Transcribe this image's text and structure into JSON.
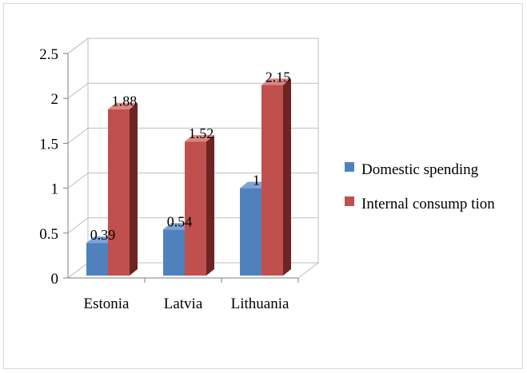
{
  "chart_data": {
    "type": "bar",
    "style": "3d-clustered-column",
    "categories": [
      "Estonia",
      "Latvia",
      "Lithuania"
    ],
    "series": [
      {
        "name": "Domestic spending",
        "color": "#4f81bd",
        "side_color": "#2f5a8f",
        "top_color": "#7ea2d2",
        "values": [
          0.39,
          0.54,
          1
        ],
        "labels": [
          "0.39",
          "0.54",
          "1"
        ]
      },
      {
        "name": "Internal consump tion",
        "color": "#c0504d",
        "side_color": "#6e2422",
        "top_color": "#d98683",
        "values": [
          1.88,
          1.52,
          2.15
        ],
        "labels": [
          "1.88",
          "1.52",
          "2.15"
        ]
      }
    ],
    "ylim": [
      0,
      2.5
    ],
    "yticks": [
      "0",
      "0.5",
      "1",
      "1.5",
      "2",
      "2.5"
    ],
    "ytick_values": [
      0,
      0.5,
      1,
      1.5,
      2,
      2.5
    ],
    "grid": true,
    "legend_position": "right",
    "title": "",
    "xlabel": "",
    "ylabel": ""
  }
}
